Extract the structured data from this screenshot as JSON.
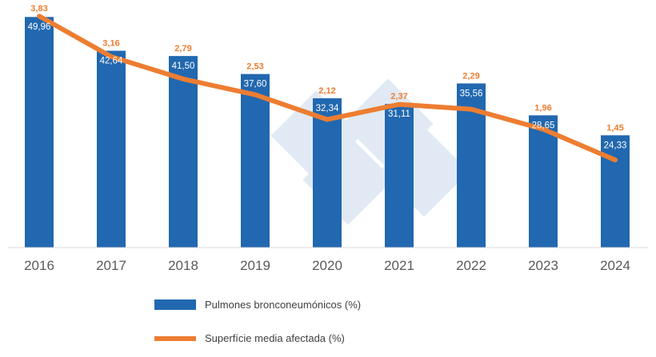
{
  "chart_data": {
    "type": "bar+line",
    "categories": [
      "2016",
      "2017",
      "2018",
      "2019",
      "2020",
      "2021",
      "2022",
      "2023",
      "2024"
    ],
    "series": [
      {
        "name": "Pulmones bronconeumónicos (%)",
        "type": "bar",
        "axis": "primary",
        "color": "#2168b0",
        "values": [
          49.96,
          42.64,
          41.5,
          37.6,
          32.34,
          31.11,
          35.56,
          28.65,
          24.33
        ],
        "labels": [
          "49,96",
          "42,64",
          "41,50",
          "37,60",
          "32,34",
          "31,11",
          "35,56",
          "28,65",
          "24,33"
        ]
      },
      {
        "name": "Superfície media afectada (%)",
        "type": "line",
        "axis": "secondary",
        "color": "#ed7d31",
        "values": [
          3.83,
          3.16,
          2.79,
          2.53,
          2.12,
          2.37,
          2.29,
          1.96,
          1.45
        ],
        "labels": [
          "3,83",
          "3,16",
          "2,79",
          "2,53",
          "2,12",
          "2,37",
          "2,29",
          "1,96",
          "1,45"
        ]
      }
    ],
    "ylim": [
      0,
      50
    ],
    "y2lim": [
      0,
      3.82
    ],
    "grid": false,
    "legend_position": "bottom"
  }
}
